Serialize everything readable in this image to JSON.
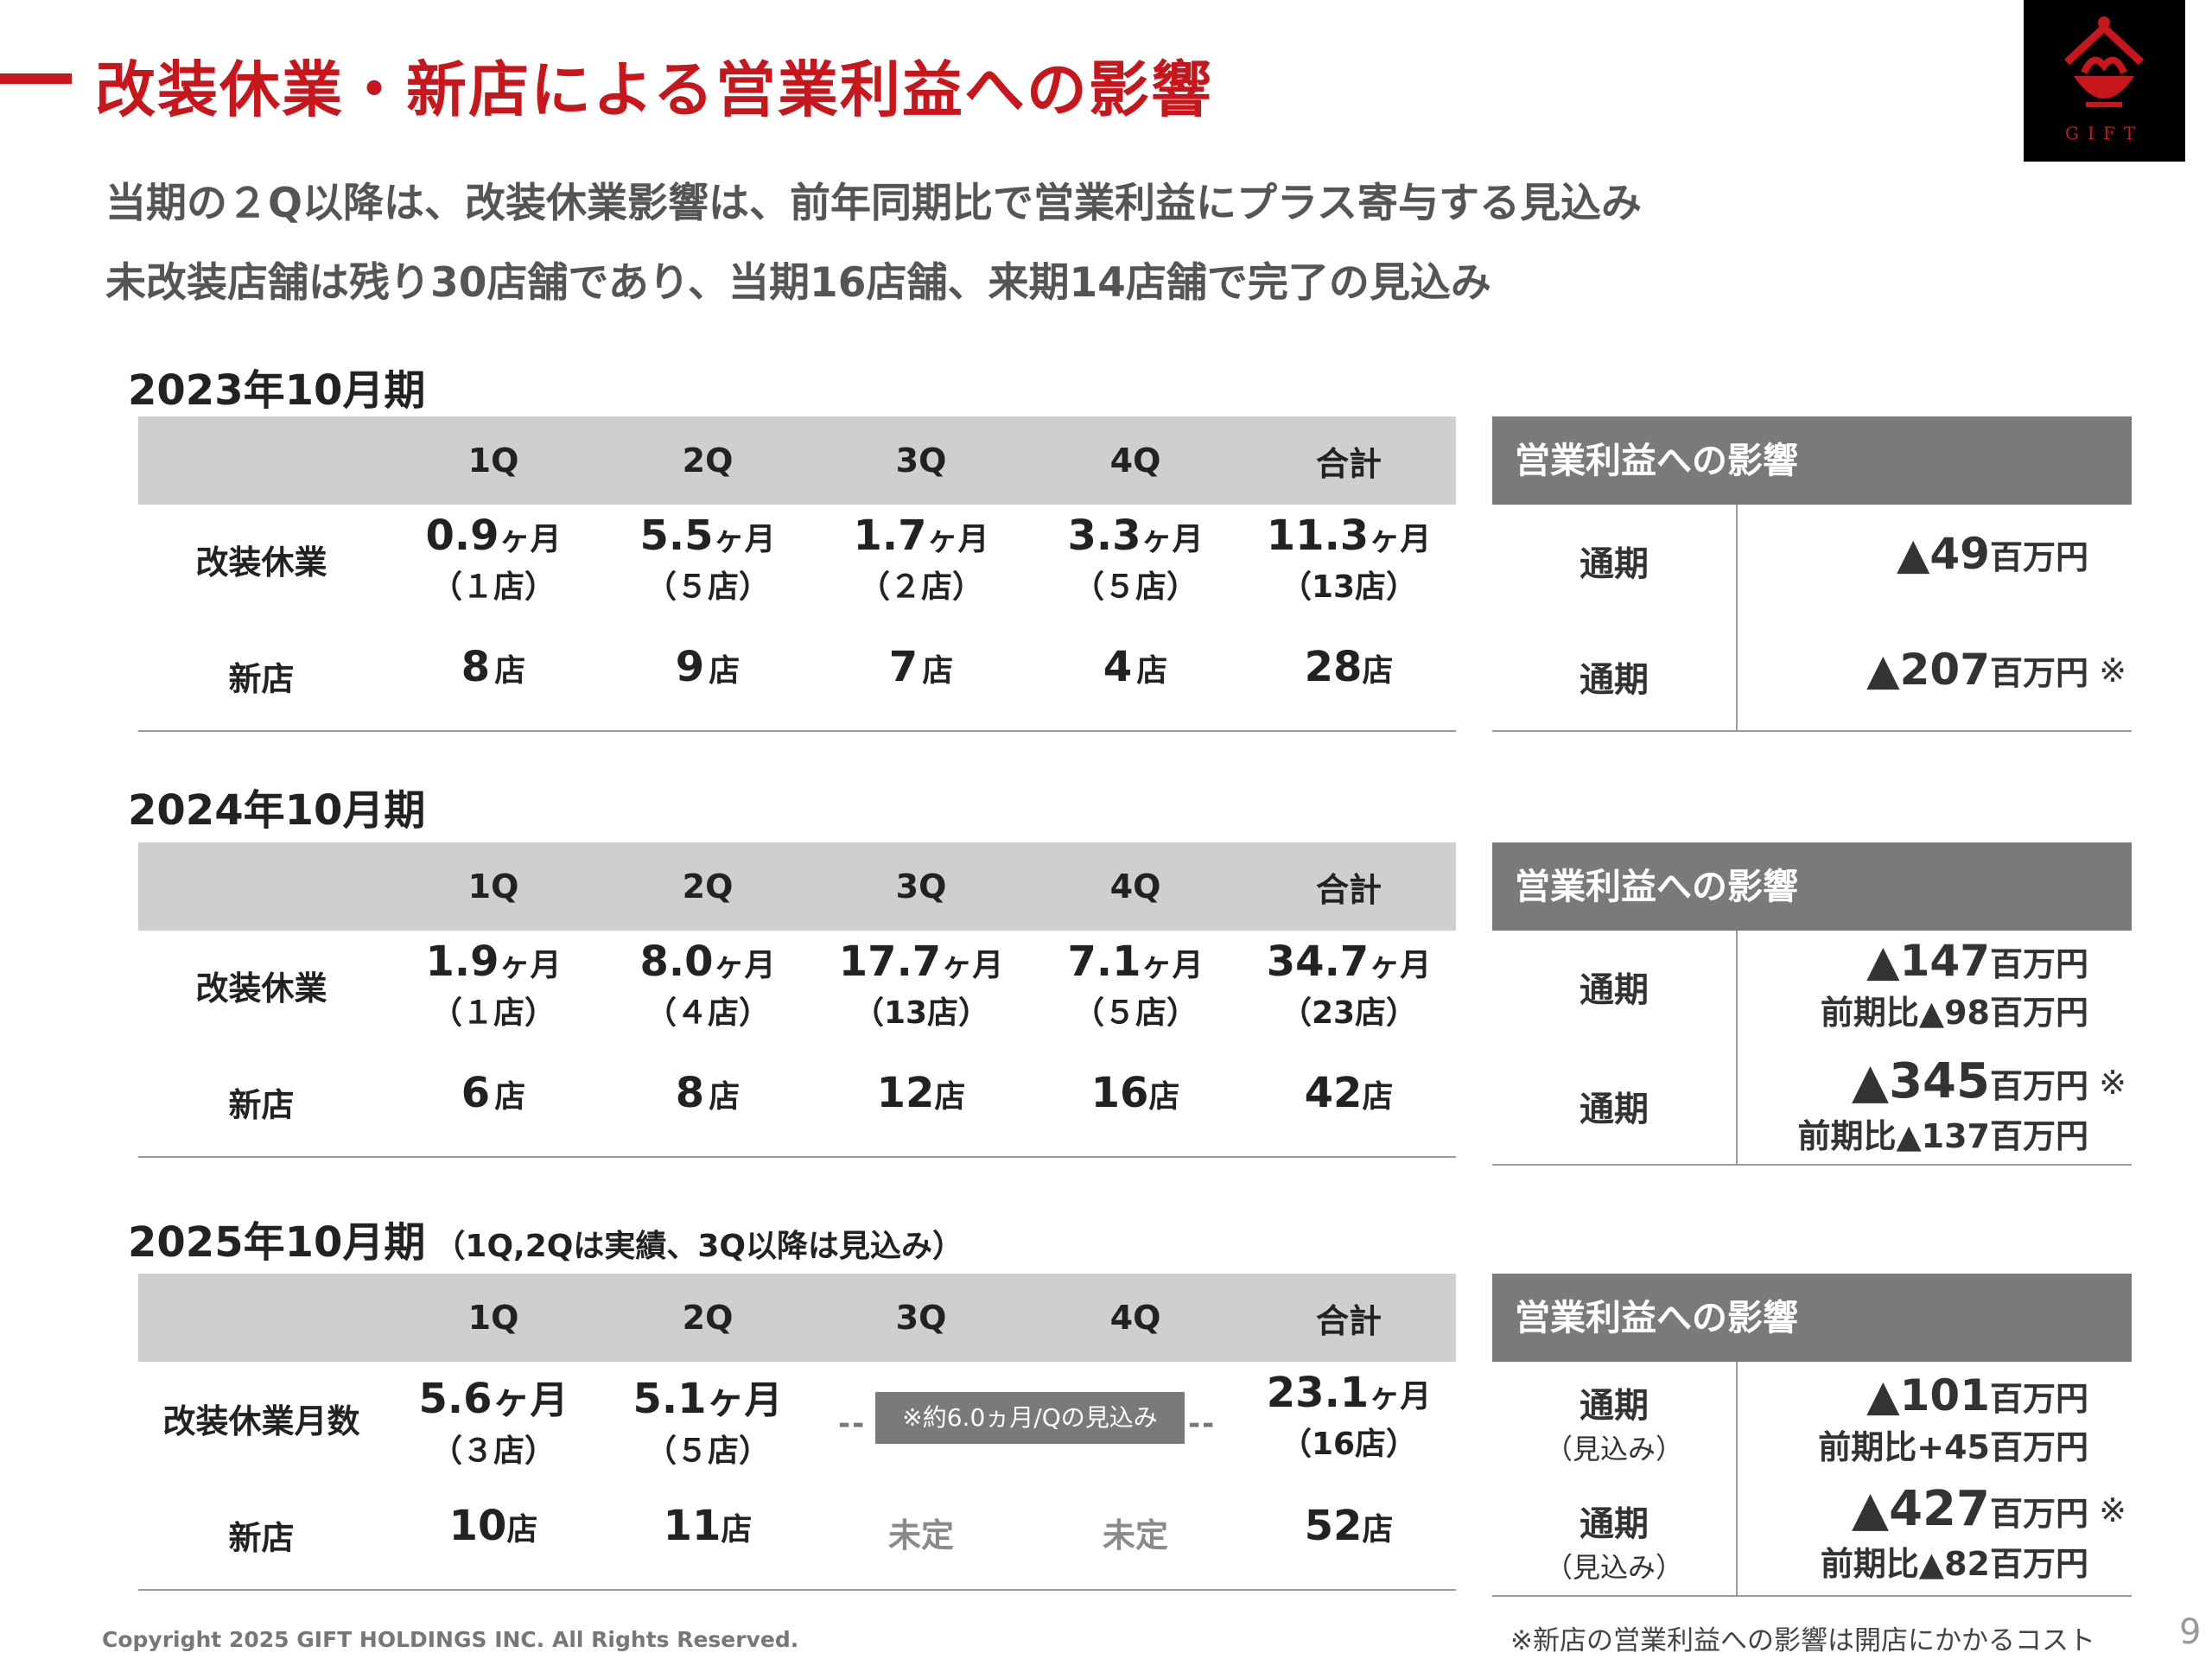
{
  "title": "改装休業・新店による営業利益への影響",
  "logo_text": "GIFT",
  "subtitle_lines": [
    "当期の２Q以降は、改装休業影響は、前年同期比で営業利益にプラス寄与する見込み",
    "未改装店舗は残り30店舗であり、当期16店舗、来期14店舗で完了の見込み"
  ],
  "columns": [
    "1Q",
    "2Q",
    "3Q",
    "4Q",
    "合計"
  ],
  "impact_header": "営業利益への影響",
  "sections": [
    {
      "title": "2023年10月期",
      "note": "",
      "rows": [
        {
          "label": "改装休業",
          "cells": [
            {
              "v": "0.9",
              "u": "ヶ月",
              "p": "（１店）"
            },
            {
              "v": "5.5",
              "u": "ヶ月",
              "p": "（５店）"
            },
            {
              "v": "1.7",
              "u": "ヶ月",
              "p": "（２店）"
            },
            {
              "v": "3.3",
              "u": "ヶ月",
              "p": "（５店）"
            },
            {
              "v": "11.3",
              "u": "ヶ月",
              "p": "（13店）"
            }
          ]
        },
        {
          "label": "新店",
          "cells": [
            {
              "v": "8",
              "u": "店"
            },
            {
              "v": "9",
              "u": "店"
            },
            {
              "v": "7",
              "u": "店"
            },
            {
              "v": "4",
              "u": "店"
            },
            {
              "v": "28",
              "u": "店"
            }
          ]
        }
      ],
      "impact": [
        {
          "label": "通期",
          "sublabel": "",
          "value": "▲49",
          "unit": "百万円",
          "mark": "",
          "compare": ""
        },
        {
          "label": "通期",
          "sublabel": "",
          "value": "▲207",
          "unit": "百万円",
          "mark": "※",
          "compare": ""
        }
      ]
    },
    {
      "title": "2024年10月期",
      "note": "",
      "rows": [
        {
          "label": "改装休業",
          "cells": [
            {
              "v": "1.9",
              "u": "ヶ月",
              "p": "（１店）"
            },
            {
              "v": "8.0",
              "u": "ヶ月",
              "p": "（４店）"
            },
            {
              "v": "17.7",
              "u": "ヶ月",
              "p": "（13店）"
            },
            {
              "v": "7.1",
              "u": "ヶ月",
              "p": "（５店）"
            },
            {
              "v": "34.7",
              "u": "ヶ月",
              "p": "（23店）"
            }
          ]
        },
        {
          "label": "新店",
          "cells": [
            {
              "v": "6",
              "u": "店"
            },
            {
              "v": "8",
              "u": "店"
            },
            {
              "v": "12",
              "u": "店"
            },
            {
              "v": "16",
              "u": "店"
            },
            {
              "v": "42",
              "u": "店"
            }
          ]
        }
      ],
      "impact": [
        {
          "label": "通期",
          "sublabel": "",
          "value": "▲147",
          "unit": "百万円",
          "mark": "",
          "compare": "前期比▲98百万円"
        },
        {
          "label": "通期",
          "sublabel": "",
          "value": "▲345",
          "unit": "百万円",
          "mark": "※",
          "compare": "前期比▲137百万円"
        }
      ]
    },
    {
      "title": "2025年10月期",
      "note": "（1Q,2Qは実績、3Q以降は見込み）",
      "rows": [
        {
          "label": "改装休業月数",
          "cells": [
            {
              "v": "5.6",
              "u": "ヶ月",
              "p": "（３店）"
            },
            {
              "v": "5.1",
              "u": "ヶ月",
              "p": "（５店）"
            },
            {
              "v": "",
              "u": "",
              "p": ""
            },
            {
              "v": "",
              "u": "",
              "p": ""
            },
            {
              "v": "23.1",
              "u": "ヶ月",
              "p": "（16店）"
            }
          ]
        },
        {
          "label": "新店",
          "cells": [
            {
              "v": "10",
              "u": "店"
            },
            {
              "v": "11",
              "u": "店"
            },
            {
              "v": "未定",
              "u": ""
            },
            {
              "v": "未定",
              "u": ""
            },
            {
              "v": "52",
              "u": "店"
            }
          ]
        }
      ],
      "estimate_badge": "※約6.0ヵ月/Qの見込み",
      "impact": [
        {
          "label": "通期",
          "sublabel": "（見込み）",
          "value": "▲101",
          "unit": "百万円",
          "mark": "",
          "compare": "前期比+45百万円"
        },
        {
          "label": "通期",
          "sublabel": "（見込み）",
          "value": "▲427",
          "unit": "百万円",
          "mark": "※",
          "compare": "前期比▲82百万円"
        }
      ]
    }
  ],
  "footnote": "※新店の営業利益への影響は開店にかかるコスト",
  "copyright": "Copyright 2025 GIFT HOLDINGS INC. All Rights Reserved.",
  "page_number": "9"
}
